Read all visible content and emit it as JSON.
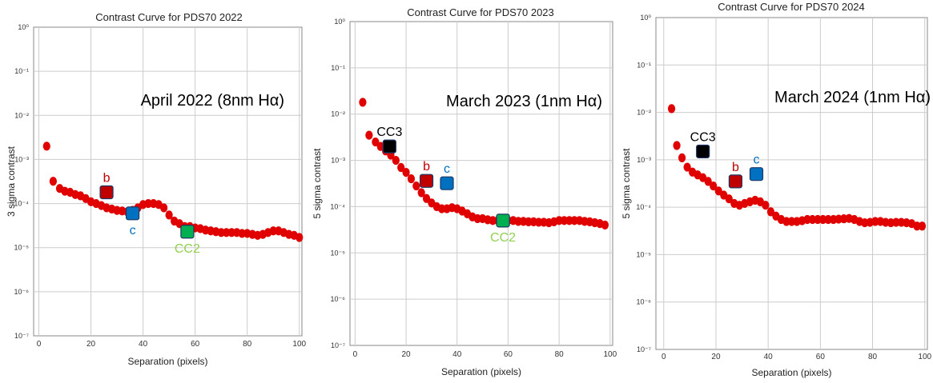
{
  "chart_data": [
    {
      "type": "scatter",
      "title": "Contrast Curve for PDS70 2022",
      "xlabel": "Separation (pixels)",
      "ylabel": "3 sigma contrast",
      "annotation": "April 2022 (8nm Hα)",
      "yscale": "log",
      "xlim": [
        -2,
        101
      ],
      "ylim": [
        1e-07,
        1
      ],
      "xticks": [
        "0",
        "20",
        "40",
        "60",
        "80",
        "100"
      ],
      "yticks": [
        "10⁻⁷",
        "10⁻⁶",
        "10⁻⁵",
        "10⁻⁴",
        "10⁻³",
        "10⁻²",
        "10⁻¹",
        "10⁰"
      ],
      "grid": true,
      "series": [
        {
          "x": [
            3,
            5.5,
            8,
            10,
            12,
            14,
            16,
            18,
            20,
            22,
            24,
            26,
            28,
            30,
            32,
            34,
            36,
            38,
            40,
            42,
            44,
            46,
            48,
            50,
            52,
            54,
            56,
            58,
            60,
            62,
            64,
            66,
            68,
            70,
            72,
            74,
            76,
            78,
            80,
            82,
            84,
            86,
            88,
            90,
            92,
            94,
            96,
            98,
            100
          ],
          "y": [
            0.002,
            0.00032,
            0.00022,
            0.00019,
            0.00018,
            0.00016,
            0.00015,
            0.00013,
            0.00011,
            0.0001,
            9e-05,
            8e-05,
            7.5e-05,
            7e-05,
            6.8e-05,
            6.5e-05,
            7e-05,
            8e-05,
            9.5e-05,
            0.0001,
            0.0001,
            9.5e-05,
            8e-05,
            5.5e-05,
            4e-05,
            3.5e-05,
            3e-05,
            3e-05,
            2.8e-05,
            2.7e-05,
            2.5e-05,
            2.4e-05,
            2.3e-05,
            2.2e-05,
            2.2e-05,
            2.2e-05,
            2.2e-05,
            2.1e-05,
            2.1e-05,
            2e-05,
            1.9e-05,
            2e-05,
            2.2e-05,
            2.4e-05,
            2.4e-05,
            2.2e-05,
            2e-05,
            1.9e-05,
            1.7e-05
          ]
        }
      ],
      "markers": [
        {
          "label": "b",
          "x": 26,
          "y": 0.00018,
          "color": "#C00000",
          "label_pos": "above",
          "label_color": "#C00000"
        },
        {
          "label": "c",
          "x": 36,
          "y": 6e-05,
          "color": "#0070C0",
          "label_pos": "below",
          "label_color": "#0070C0"
        },
        {
          "label": "CC2",
          "x": 57,
          "y": 2.3e-05,
          "color": "#00B050",
          "label_pos": "below",
          "label_color": "#92D050"
        }
      ]
    },
    {
      "type": "scatter",
      "title": "Contrast Curve for PDS70 2023",
      "xlabel": "Separation (pixels)",
      "ylabel": "5 sigma contrast",
      "annotation": "March 2023 (1nm Hα)",
      "yscale": "log",
      "xlim": [
        -2,
        101
      ],
      "ylim": [
        1e-07,
        1
      ],
      "xticks": [
        "0",
        "20",
        "40",
        "60",
        "80",
        "100"
      ],
      "yticks": [
        "10⁻⁷",
        "10⁻⁶",
        "10⁻⁵",
        "10⁻⁴",
        "10⁻³",
        "10⁻²",
        "10⁻¹",
        "10⁰"
      ],
      "grid": true,
      "series": [
        {
          "x": [
            3,
            5.5,
            8,
            10,
            12,
            14,
            16,
            18,
            20,
            22,
            24,
            26,
            28,
            30,
            32,
            34,
            36,
            38,
            40,
            42,
            44,
            46,
            48,
            50,
            52,
            54,
            56,
            58,
            60,
            62,
            64,
            66,
            68,
            70,
            72,
            74,
            76,
            78,
            80,
            82,
            84,
            86,
            88,
            90,
            92,
            94,
            96,
            98
          ],
          "y": [
            0.018,
            0.0035,
            0.0025,
            0.002,
            0.0016,
            0.0013,
            0.001,
            0.0007,
            0.00055,
            0.0004,
            0.00028,
            0.0002,
            0.00015,
            0.00012,
            0.0001,
            9e-05,
            9e-05,
            9.5e-05,
            9e-05,
            8e-05,
            7e-05,
            6e-05,
            5.5e-05,
            5.5e-05,
            5.2e-05,
            5e-05,
            5e-05,
            5e-05,
            5e-05,
            5e-05,
            4.8e-05,
            4.8e-05,
            4.7e-05,
            4.7e-05,
            4.6e-05,
            4.6e-05,
            4.5e-05,
            4.7e-05,
            5e-05,
            5e-05,
            5e-05,
            5e-05,
            5e-05,
            4.8e-05,
            4.7e-05,
            4.5e-05,
            4.3e-05,
            4e-05
          ]
        }
      ],
      "markers": [
        {
          "label": "CC3",
          "x": 13.5,
          "y": 0.002,
          "color": "#000000",
          "label_pos": "above",
          "label_color": "#000000"
        },
        {
          "label": "b",
          "x": 28,
          "y": 0.00036,
          "color": "#C00000",
          "label_pos": "above",
          "label_color": "#C00000"
        },
        {
          "label": "c",
          "x": 36,
          "y": 0.00032,
          "color": "#0070C0",
          "label_pos": "above",
          "label_color": "#0070C0"
        },
        {
          "label": "CC2",
          "x": 58,
          "y": 5e-05,
          "color": "#00B050",
          "label_pos": "below",
          "label_color": "#92D050"
        }
      ]
    },
    {
      "type": "scatter",
      "title": "Contrast Curve for PDS70 2024",
      "xlabel": "Separation (pixels)",
      "ylabel": "5 sigma contrast",
      "annotation": "March 2024 (1nm Hα)",
      "yscale": "log",
      "xlim": [
        -3,
        101
      ],
      "ylim": [
        1e-07,
        1
      ],
      "xticks": [
        "0",
        "20",
        "40",
        "60",
        "80",
        "100"
      ],
      "yticks": [
        "10⁻⁷",
        "10⁻⁶",
        "10⁻⁵",
        "10⁻⁴",
        "10⁻³",
        "10⁻²",
        "10⁻¹",
        "10⁰"
      ],
      "grid": true,
      "series": [
        {
          "x": [
            3,
            5,
            7,
            9,
            11,
            13,
            15,
            17,
            19,
            21,
            23,
            25,
            27,
            29,
            31,
            33,
            35,
            37,
            39,
            41,
            43,
            45,
            47,
            49,
            51,
            53,
            55,
            57,
            59,
            61,
            63,
            65,
            67,
            69,
            71,
            73,
            75,
            77,
            79,
            81,
            83,
            85,
            87,
            89,
            91,
            93,
            95,
            97,
            99
          ],
          "y": [
            0.012,
            0.002,
            0.0011,
            0.0007,
            0.00055,
            0.00048,
            0.00042,
            0.00035,
            0.00028,
            0.00022,
            0.00018,
            0.00015,
            0.00012,
            0.00011,
            0.00012,
            0.00013,
            0.00014,
            0.00013,
            0.00011,
            8e-05,
            6.5e-05,
            5.5e-05,
            5e-05,
            5e-05,
            5e-05,
            5.2e-05,
            5.5e-05,
            5.5e-05,
            5.5e-05,
            5.5e-05,
            5.5e-05,
            5.5e-05,
            5.6e-05,
            5.7e-05,
            5.8e-05,
            5.5e-05,
            5e-05,
            4.7e-05,
            4.8e-05,
            5e-05,
            5e-05,
            4.8e-05,
            4.7e-05,
            4.8e-05,
            4.8e-05,
            4.7e-05,
            4.5e-05,
            4e-05,
            4e-05
          ]
        }
      ],
      "markers": [
        {
          "label": "CC3",
          "x": 15,
          "y": 0.0015,
          "color": "#000000",
          "label_pos": "above",
          "label_color": "#000000"
        },
        {
          "label": "b",
          "x": 27.5,
          "y": 0.00035,
          "color": "#C00000",
          "label_pos": "above",
          "label_color": "#C00000"
        },
        {
          "label": "c",
          "x": 35.5,
          "y": 0.0005,
          "color": "#0070C0",
          "label_pos": "above",
          "label_color": "#0070C0"
        }
      ]
    }
  ],
  "colors": {
    "points": "#E00000",
    "grid": "#CCCCCC",
    "axis": "#888888",
    "text": "#333333"
  }
}
